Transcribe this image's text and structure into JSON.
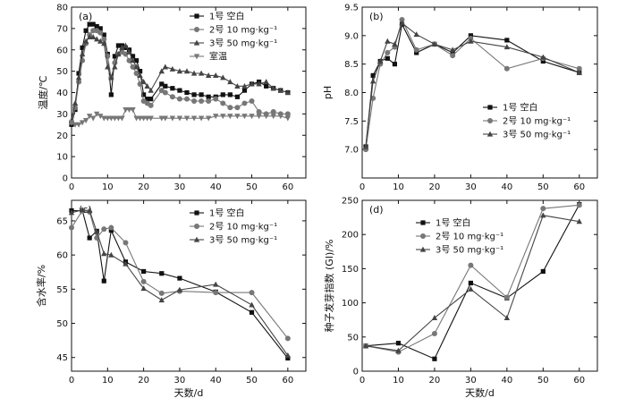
{
  "chart_data": [
    {
      "id": "a",
      "type": "line",
      "panel_label": "(a)",
      "xlabel": "",
      "ylabel": "温度/℃",
      "xlim": [
        0,
        65
      ],
      "ylim": [
        0,
        80
      ],
      "xticks": [
        0,
        10,
        20,
        30,
        40,
        50,
        60
      ],
      "yticks": [
        0,
        10,
        20,
        30,
        40,
        50,
        60,
        70,
        80
      ],
      "legend_position": "top-right",
      "series": [
        {
          "name": "1号 空白",
          "marker": "square",
          "color": "#111111",
          "x": [
            0,
            1,
            2,
            3,
            4,
            5,
            6,
            7,
            8,
            9,
            10,
            11,
            12,
            13,
            14,
            15,
            16,
            17,
            18,
            19,
            20,
            21,
            22,
            25,
            26,
            28,
            30,
            32,
            34,
            36,
            38,
            40,
            42,
            44,
            46,
            48,
            50,
            52,
            54,
            56,
            58,
            60
          ],
          "y": [
            25,
            32,
            49,
            61,
            69,
            72,
            72,
            71,
            70,
            67,
            58,
            39,
            57,
            62,
            62,
            61,
            60,
            57,
            55,
            50,
            39,
            37,
            37,
            44,
            43,
            42,
            41,
            40,
            39,
            39,
            38,
            38,
            39,
            39,
            38,
            41,
            44,
            45,
            43,
            42,
            41,
            40
          ]
        },
        {
          "name": "2号 10 mg·kg⁻¹",
          "marker": "circle",
          "color": "#777777",
          "x": [
            0,
            1,
            2,
            3,
            4,
            5,
            6,
            7,
            8,
            9,
            10,
            11,
            12,
            13,
            14,
            15,
            16,
            17,
            18,
            19,
            20,
            21,
            22,
            25,
            26,
            28,
            30,
            32,
            34,
            36,
            38,
            40,
            42,
            44,
            46,
            48,
            50,
            52,
            54,
            56,
            58,
            60
          ],
          "y": [
            26,
            33,
            45,
            55,
            63,
            67,
            69,
            69,
            68,
            65,
            57,
            47,
            54,
            58,
            59,
            58,
            55,
            52,
            49,
            44,
            36,
            35,
            34,
            41,
            40,
            38,
            37,
            37,
            36,
            36,
            36,
            37,
            35,
            33,
            33,
            35,
            36,
            31,
            30,
            31,
            30,
            30
          ]
        },
        {
          "name": "3号 50 mg·kg⁻¹",
          "marker": "triangle",
          "color": "#444444",
          "x": [
            0,
            1,
            2,
            3,
            4,
            5,
            6,
            7,
            8,
            9,
            10,
            11,
            12,
            13,
            14,
            15,
            16,
            17,
            18,
            19,
            20,
            21,
            22,
            25,
            26,
            28,
            30,
            32,
            34,
            36,
            38,
            40,
            42,
            44,
            46,
            48,
            50,
            52,
            54,
            56,
            58,
            60
          ],
          "y": [
            27,
            35,
            47,
            58,
            64,
            66,
            66,
            65,
            64,
            63,
            52,
            47,
            52,
            58,
            61,
            62,
            59,
            55,
            52,
            48,
            45,
            43,
            41,
            50,
            52,
            51,
            50,
            50,
            49,
            49,
            48,
            48,
            47,
            45,
            43,
            43,
            44,
            44,
            45,
            42,
            41,
            40
          ]
        },
        {
          "name": "室温",
          "marker": "triangle-down",
          "color": "#777777",
          "x": [
            0,
            1,
            2,
            3,
            4,
            5,
            6,
            7,
            8,
            9,
            10,
            11,
            12,
            13,
            14,
            15,
            16,
            17,
            18,
            19,
            20,
            21,
            22,
            25,
            26,
            28,
            30,
            32,
            34,
            36,
            38,
            40,
            42,
            44,
            46,
            48,
            50,
            52,
            54,
            56,
            58,
            60
          ],
          "y": [
            26,
            25,
            25,
            26,
            27,
            29,
            28,
            30,
            29,
            28,
            28,
            28,
            28,
            28,
            28,
            32,
            32,
            32,
            28,
            28,
            28,
            28,
            28,
            28,
            28,
            28,
            28,
            28,
            28,
            28,
            28,
            29,
            29,
            29,
            29,
            29,
            29,
            29,
            29,
            29,
            29,
            28
          ]
        }
      ]
    },
    {
      "id": "b",
      "type": "line",
      "panel_label": "(b)",
      "xlabel": "",
      "ylabel": "pH",
      "xlim": [
        0,
        65
      ],
      "ylim": [
        6.5,
        9.5
      ],
      "xticks": [
        0,
        10,
        20,
        30,
        40,
        50,
        60
      ],
      "yticks": [
        7.0,
        7.5,
        8.0,
        8.5,
        9.0,
        9.5
      ],
      "legend_position": "bottom-right",
      "series": [
        {
          "name": "1号 空白",
          "marker": "square",
          "color": "#111111",
          "x": [
            1,
            3,
            5,
            7,
            9,
            11,
            15,
            20,
            25,
            30,
            40,
            50,
            60
          ],
          "y": [
            7.05,
            8.3,
            8.55,
            8.6,
            8.5,
            9.2,
            8.7,
            8.85,
            8.7,
            9.0,
            8.92,
            8.55,
            8.35
          ]
        },
        {
          "name": "2号 10 mg·kg⁻¹",
          "marker": "circle",
          "color": "#777777",
          "x": [
            1,
            3,
            5,
            7,
            9,
            11,
            15,
            20,
            25,
            30,
            40,
            50,
            60
          ],
          "y": [
            7.0,
            7.9,
            8.5,
            8.7,
            8.8,
            9.28,
            8.75,
            8.85,
            8.65,
            8.95,
            8.42,
            8.6,
            8.42
          ]
        },
        {
          "name": "3号 50 mg·kg⁻¹",
          "marker": "triangle",
          "color": "#444444",
          "x": [
            1,
            3,
            5,
            7,
            9,
            11,
            15,
            20,
            25,
            30,
            40,
            50,
            60
          ],
          "y": [
            7.05,
            8.2,
            8.55,
            8.9,
            8.85,
            9.22,
            9.02,
            8.85,
            8.75,
            8.9,
            8.8,
            8.62,
            8.35
          ]
        }
      ]
    },
    {
      "id": "c",
      "type": "line",
      "panel_label": "(c)",
      "xlabel": "天数/d",
      "ylabel": "含水率/%",
      "xlim": [
        0,
        65
      ],
      "ylim": [
        43,
        68
      ],
      "xticks": [
        0,
        10,
        20,
        30,
        40,
        50,
        60
      ],
      "yticks": [
        45,
        50,
        55,
        60,
        65
      ],
      "legend_position": "top-right",
      "series": [
        {
          "name": "1号 空白",
          "marker": "square",
          "color": "#111111",
          "x": [
            0,
            3,
            5,
            7,
            9,
            11,
            15,
            20,
            25,
            30,
            40,
            50,
            60
          ],
          "y": [
            66.5,
            66.5,
            62.5,
            63.5,
            56.2,
            63.6,
            59.0,
            57.6,
            57.3,
            56.6,
            54.6,
            51.6,
            44.9
          ]
        },
        {
          "name": "2号 10 mg·kg⁻¹",
          "marker": "circle",
          "color": "#777777",
          "x": [
            0,
            3,
            5,
            7,
            9,
            11,
            15,
            20,
            25,
            30,
            40,
            50,
            60
          ],
          "y": [
            64.0,
            66.5,
            66.3,
            62.5,
            63.8,
            64.0,
            61.8,
            56.1,
            54.4,
            54.7,
            54.5,
            54.5,
            47.8
          ]
        },
        {
          "name": "3号 50 mg·kg⁻¹",
          "marker": "triangle",
          "color": "#444444",
          "x": [
            0,
            3,
            5,
            7,
            9,
            11,
            15,
            20,
            25,
            30,
            40,
            50,
            60
          ],
          "y": [
            66.2,
            66.6,
            66.5,
            63.4,
            60.2,
            60.0,
            58.7,
            55.1,
            53.4,
            54.9,
            55.7,
            52.7,
            45.3
          ]
        }
      ]
    },
    {
      "id": "d",
      "type": "line",
      "panel_label": "(d)",
      "xlabel": "天数/d",
      "ylabel": "种子发芽指数 (GI)/%",
      "xlim": [
        0,
        65
      ],
      "ylim": [
        0,
        250
      ],
      "xticks": [
        0,
        10,
        20,
        30,
        40,
        50,
        60
      ],
      "yticks": [
        0,
        50,
        100,
        150,
        200,
        250
      ],
      "legend_position": "top-left",
      "series": [
        {
          "name": "1号 空白",
          "marker": "square",
          "color": "#111111",
          "x": [
            1,
            10,
            20,
            30,
            40,
            50,
            60
          ],
          "y": [
            37,
            41,
            18,
            129,
            107,
            146,
            244
          ]
        },
        {
          "name": "2号 10 mg·kg⁻¹",
          "marker": "circle",
          "color": "#777777",
          "x": [
            1,
            10,
            20,
            30,
            40,
            50,
            60
          ],
          "y": [
            37,
            28,
            55,
            155,
            108,
            238,
            243
          ]
        },
        {
          "name": "3号 50 mg·kg⁻¹",
          "marker": "triangle",
          "color": "#444444",
          "x": [
            1,
            10,
            20,
            30,
            40,
            50,
            60
          ],
          "y": [
            37,
            30,
            78,
            120,
            78,
            228,
            219
          ]
        }
      ]
    }
  ]
}
